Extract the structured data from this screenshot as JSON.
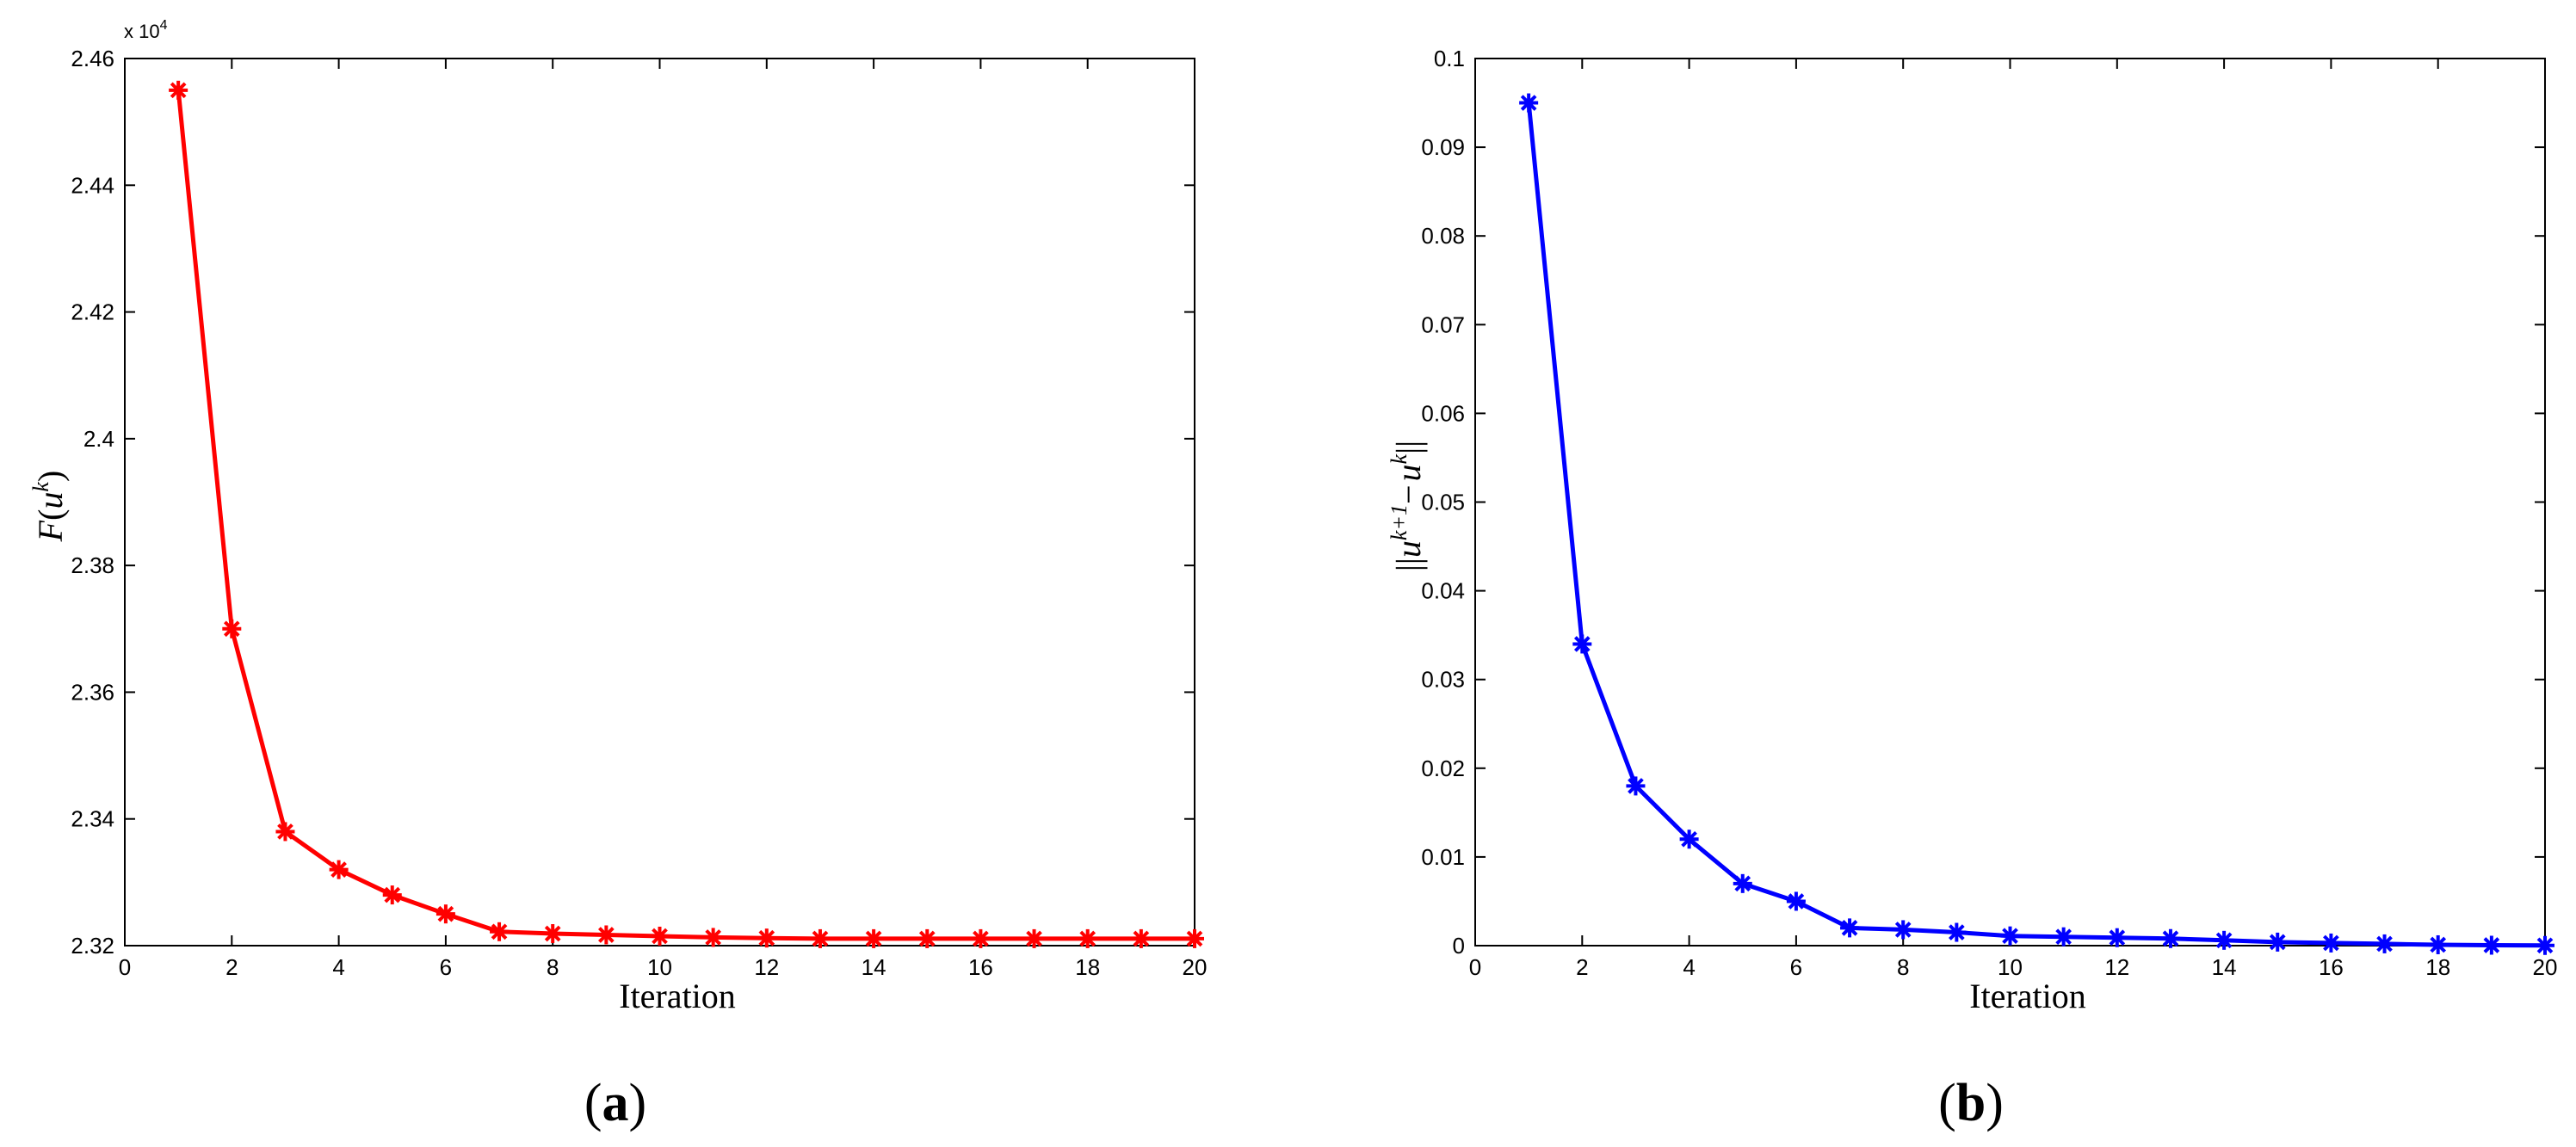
{
  "chart_data": [
    {
      "type": "line",
      "panel_label": "a",
      "xlabel": "Iteration",
      "ylabel": "F(u^k)",
      "ylabel_main": "F",
      "ylabel_var": "u",
      "ylabel_sup": "k",
      "y_exponent": {
        "base": "x 10",
        "power": "4"
      },
      "xlim": [
        0,
        20
      ],
      "ylim": [
        2.32,
        2.46
      ],
      "xticks": [
        "0",
        "2",
        "4",
        "6",
        "8",
        "10",
        "12",
        "14",
        "16",
        "18",
        "20"
      ],
      "yticks": [
        "2.32",
        "2.34",
        "2.36",
        "2.38",
        "2.4",
        "2.42",
        "2.44",
        "2.46"
      ],
      "grid": false,
      "color": "#ff0000",
      "marker": "asterisk",
      "series": [
        {
          "x": [
            1,
            2,
            3,
            4,
            5,
            6,
            7,
            8,
            9,
            10,
            11,
            12,
            13,
            14,
            15,
            16,
            17,
            18,
            19,
            20
          ],
          "values": [
            2.455,
            2.37,
            2.338,
            2.332,
            2.328,
            2.325,
            2.3222,
            2.3219,
            2.3217,
            2.3215,
            2.3213,
            2.3212,
            2.3211,
            2.3211,
            2.3211,
            2.3211,
            2.3211,
            2.3211,
            2.3211,
            2.3211
          ]
        }
      ]
    },
    {
      "type": "line",
      "panel_label": "b",
      "xlabel": "Iteration",
      "ylabel": "||u^{k+1}- u^k||",
      "ylabel_var": "u",
      "ylabel_sup1": "k+1",
      "ylabel_sup2": "k",
      "ylabel_bars": "||",
      "ylabel_minus": "−",
      "xlim": [
        0,
        20
      ],
      "ylim": [
        0,
        0.1
      ],
      "xticks": [
        "0",
        "2",
        "4",
        "6",
        "8",
        "10",
        "12",
        "14",
        "16",
        "18",
        "20"
      ],
      "yticks": [
        "0",
        "0.01",
        "0.02",
        "0.03",
        "0.04",
        "0.05",
        "0.06",
        "0.07",
        "0.08",
        "0.09",
        "0.1"
      ],
      "grid": false,
      "color": "#0000ff",
      "marker": "asterisk",
      "series": [
        {
          "x": [
            1,
            2,
            3,
            4,
            5,
            6,
            7,
            8,
            9,
            10,
            11,
            12,
            13,
            14,
            15,
            16,
            17,
            18,
            19,
            20
          ],
          "values": [
            0.095,
            0.034,
            0.018,
            0.012,
            0.007,
            0.005,
            0.002,
            0.0018,
            0.0015,
            0.0011,
            0.001,
            0.0009,
            0.0008,
            0.0006,
            0.0004,
            0.0003,
            0.0002,
            0.0001,
            5e-05,
            2e-05
          ]
        }
      ]
    }
  ]
}
